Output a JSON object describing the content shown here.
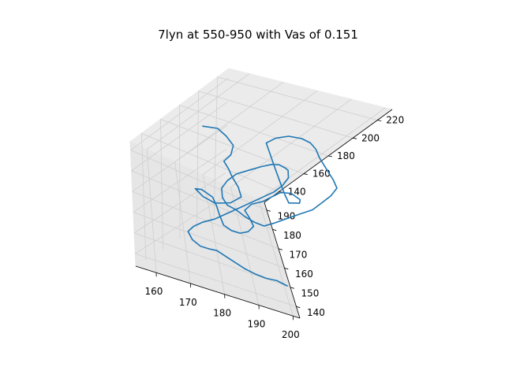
{
  "chart_data": {
    "type": "line3d",
    "title": "7lyn at 550-950 with Vas of 0.151",
    "xlabel": "",
    "ylabel": "",
    "zlabel": "",
    "grid": true,
    "x_ticks": [
      "160",
      "170",
      "180",
      "190",
      "200"
    ],
    "y_ticks": [
      "140",
      "150",
      "160",
      "170",
      "180",
      "190"
    ],
    "z_ticks": [
      "140",
      "160",
      "180",
      "200",
      "220"
    ],
    "xlim": [
      154,
      202
    ],
    "ylim": [
      134,
      194
    ],
    "zlim": [
      128,
      232
    ],
    "series_color": "#1f77b4",
    "series": [
      {
        "values": [
          [
            156,
            180,
            198
          ],
          [
            160,
            180,
            200
          ],
          [
            163,
            178,
            199
          ],
          [
            166,
            176,
            196
          ],
          [
            167,
            174,
            190
          ],
          [
            166,
            172,
            186
          ],
          [
            168,
            170,
            184
          ],
          [
            170,
            168,
            181
          ],
          [
            173,
            166,
            177
          ],
          [
            176,
            165,
            170
          ],
          [
            174,
            163,
            165
          ],
          [
            170,
            162,
            162
          ],
          [
            166,
            163,
            163
          ],
          [
            164,
            166,
            162
          ],
          [
            167,
            168,
            159
          ],
          [
            171,
            167,
            157
          ],
          [
            173,
            165,
            154
          ],
          [
            175,
            163,
            150
          ],
          [
            177,
            160,
            147
          ],
          [
            179,
            158,
            148
          ],
          [
            181,
            157,
            150
          ],
          [
            183,
            158,
            152
          ],
          [
            184,
            160,
            155
          ],
          [
            182,
            162,
            158
          ],
          [
            180,
            164,
            160
          ],
          [
            181,
            166,
            164
          ],
          [
            184,
            168,
            166
          ],
          [
            186,
            170,
            169
          ],
          [
            188,
            172,
            172
          ],
          [
            190,
            171,
            176
          ],
          [
            192,
            168,
            178
          ],
          [
            191,
            165,
            180
          ],
          [
            188,
            163,
            182
          ],
          [
            186,
            161,
            185
          ],
          [
            184,
            163,
            188
          ],
          [
            182,
            166,
            191
          ],
          [
            180,
            169,
            194
          ],
          [
            178,
            172,
            197
          ],
          [
            176,
            175,
            200
          ],
          [
            174,
            178,
            203
          ],
          [
            176,
            180,
            206
          ],
          [
            179,
            181,
            209
          ],
          [
            182,
            180,
            212
          ],
          [
            184,
            178,
            214
          ],
          [
            186,
            176,
            213
          ],
          [
            188,
            174,
            210
          ],
          [
            190,
            172,
            208
          ],
          [
            192,
            170,
            206
          ],
          [
            194,
            168,
            204
          ],
          [
            196,
            166,
            201
          ],
          [
            195,
            163,
            198
          ],
          [
            193,
            160,
            195
          ],
          [
            191,
            157,
            192
          ],
          [
            188,
            155,
            189
          ],
          [
            185,
            153,
            185
          ],
          [
            182,
            151,
            181
          ],
          [
            180,
            150,
            178
          ],
          [
            178,
            152,
            175
          ],
          [
            176,
            155,
            172
          ],
          [
            174,
            158,
            170
          ],
          [
            172,
            160,
            168
          ],
          [
            170,
            162,
            170
          ],
          [
            169,
            165,
            173
          ],
          [
            170,
            168,
            176
          ],
          [
            172,
            171,
            179
          ],
          [
            175,
            173,
            182
          ],
          [
            178,
            175,
            185
          ],
          [
            181,
            177,
            186
          ],
          [
            184,
            179,
            184
          ],
          [
            187,
            180,
            181
          ],
          [
            189,
            181,
            178
          ],
          [
            190,
            179,
            175
          ],
          [
            189,
            176,
            172
          ],
          [
            187,
            173,
            169
          ],
          [
            184,
            170,
            166
          ],
          [
            181,
            167,
            163
          ],
          [
            178,
            164,
            160
          ],
          [
            175,
            161,
            157
          ],
          [
            172,
            158,
            154
          ],
          [
            169,
            156,
            151
          ],
          [
            167,
            154,
            148
          ],
          [
            166,
            152,
            145
          ],
          [
            168,
            150,
            142
          ],
          [
            171,
            149,
            140
          ],
          [
            174,
            150,
            138
          ],
          [
            177,
            151,
            137
          ],
          [
            180,
            150,
            136
          ],
          [
            183,
            149,
            135
          ],
          [
            186,
            148,
            134
          ],
          [
            189,
            147,
            134
          ],
          [
            192,
            146,
            135
          ],
          [
            195,
            146,
            136
          ],
          [
            198,
            145,
            136
          ]
        ]
      }
    ]
  }
}
